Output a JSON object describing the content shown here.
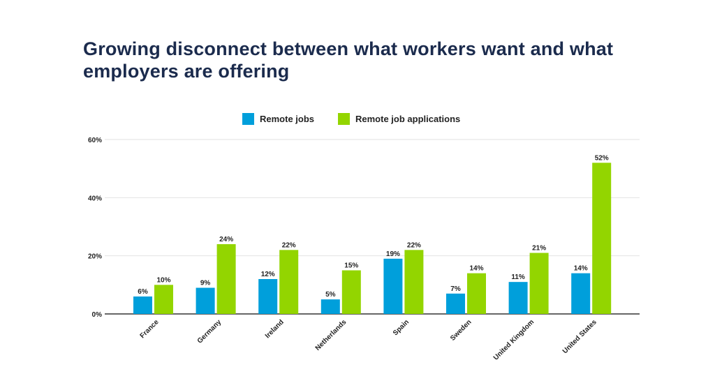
{
  "chart_data": {
    "type": "bar",
    "title": "Growing disconnect between what workers want and what employers are offering",
    "xlabel": "",
    "ylabel": "",
    "categories": [
      "France",
      "Germany",
      "Ireland",
      "Netherlands",
      "Spain",
      "Sweden",
      "United Kingdom",
      "United States"
    ],
    "series": [
      {
        "name": "Remote jobs",
        "color": "#009fdb",
        "values": [
          6,
          9,
          12,
          5,
          19,
          7,
          11,
          14
        ],
        "labels": [
          "6%",
          "9%",
          "12%",
          "5%",
          "19%",
          "7%",
          "11%",
          "14%"
        ]
      },
      {
        "name": "Remote job applications",
        "color": "#93d500",
        "values": [
          10,
          24,
          22,
          15,
          22,
          14,
          21,
          52
        ],
        "labels": [
          "10%",
          "24%",
          "22%",
          "15%",
          "22%",
          "14%",
          "21%",
          "52%"
        ]
      }
    ],
    "ylim": [
      0,
      60
    ],
    "yticks": [
      0,
      20,
      40,
      60
    ],
    "ytick_labels": [
      "0%",
      "20%",
      "40%",
      "60%"
    ],
    "grid": true,
    "legend_position": "top-center"
  }
}
